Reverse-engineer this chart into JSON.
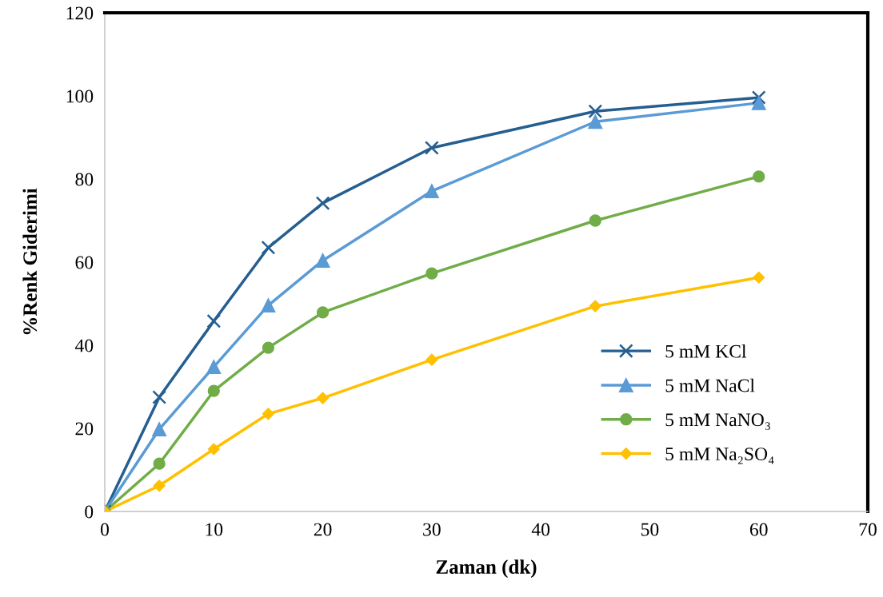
{
  "chart_data": {
    "type": "line",
    "xlabel": "Zaman (dk)",
    "ylabel": "%Renk Giderimi",
    "x": [
      0,
      5,
      10,
      15,
      20,
      30,
      45,
      60
    ],
    "series": [
      {
        "name": "5 mM KCl",
        "color": "#255e91",
        "marker": "cross",
        "values": [
          0,
          27.5,
          45.8,
          63.5,
          74.2,
          87.5,
          96.3,
          99.6
        ]
      },
      {
        "name": "5 mM NaCl",
        "color": "#5b9bd5",
        "marker": "triangle",
        "values": [
          0,
          19.8,
          34.8,
          49.6,
          60.4,
          77.1,
          93.8,
          98.3
        ]
      },
      {
        "name": "5 mM NaNO₃",
        "color": "#70ad47",
        "marker": "circle",
        "values": [
          0,
          11.5,
          29,
          39.4,
          47.9,
          57.3,
          70,
          80.6
        ]
      },
      {
        "name": "5 mM Na₂SO₄",
        "color": "#ffc000",
        "marker": "diamond",
        "values": [
          0,
          6.2,
          15,
          23.5,
          27.3,
          36.5,
          49.4,
          56.3
        ]
      }
    ],
    "xlim": [
      0,
      70
    ],
    "xticks": [
      0,
      10,
      20,
      30,
      40,
      50,
      60,
      70
    ],
    "ylim": [
      0,
      120
    ],
    "yticks": [
      0,
      20,
      40,
      60,
      80,
      100,
      120
    ],
    "grid": false,
    "legend": "right",
    "line_style": "solid"
  }
}
